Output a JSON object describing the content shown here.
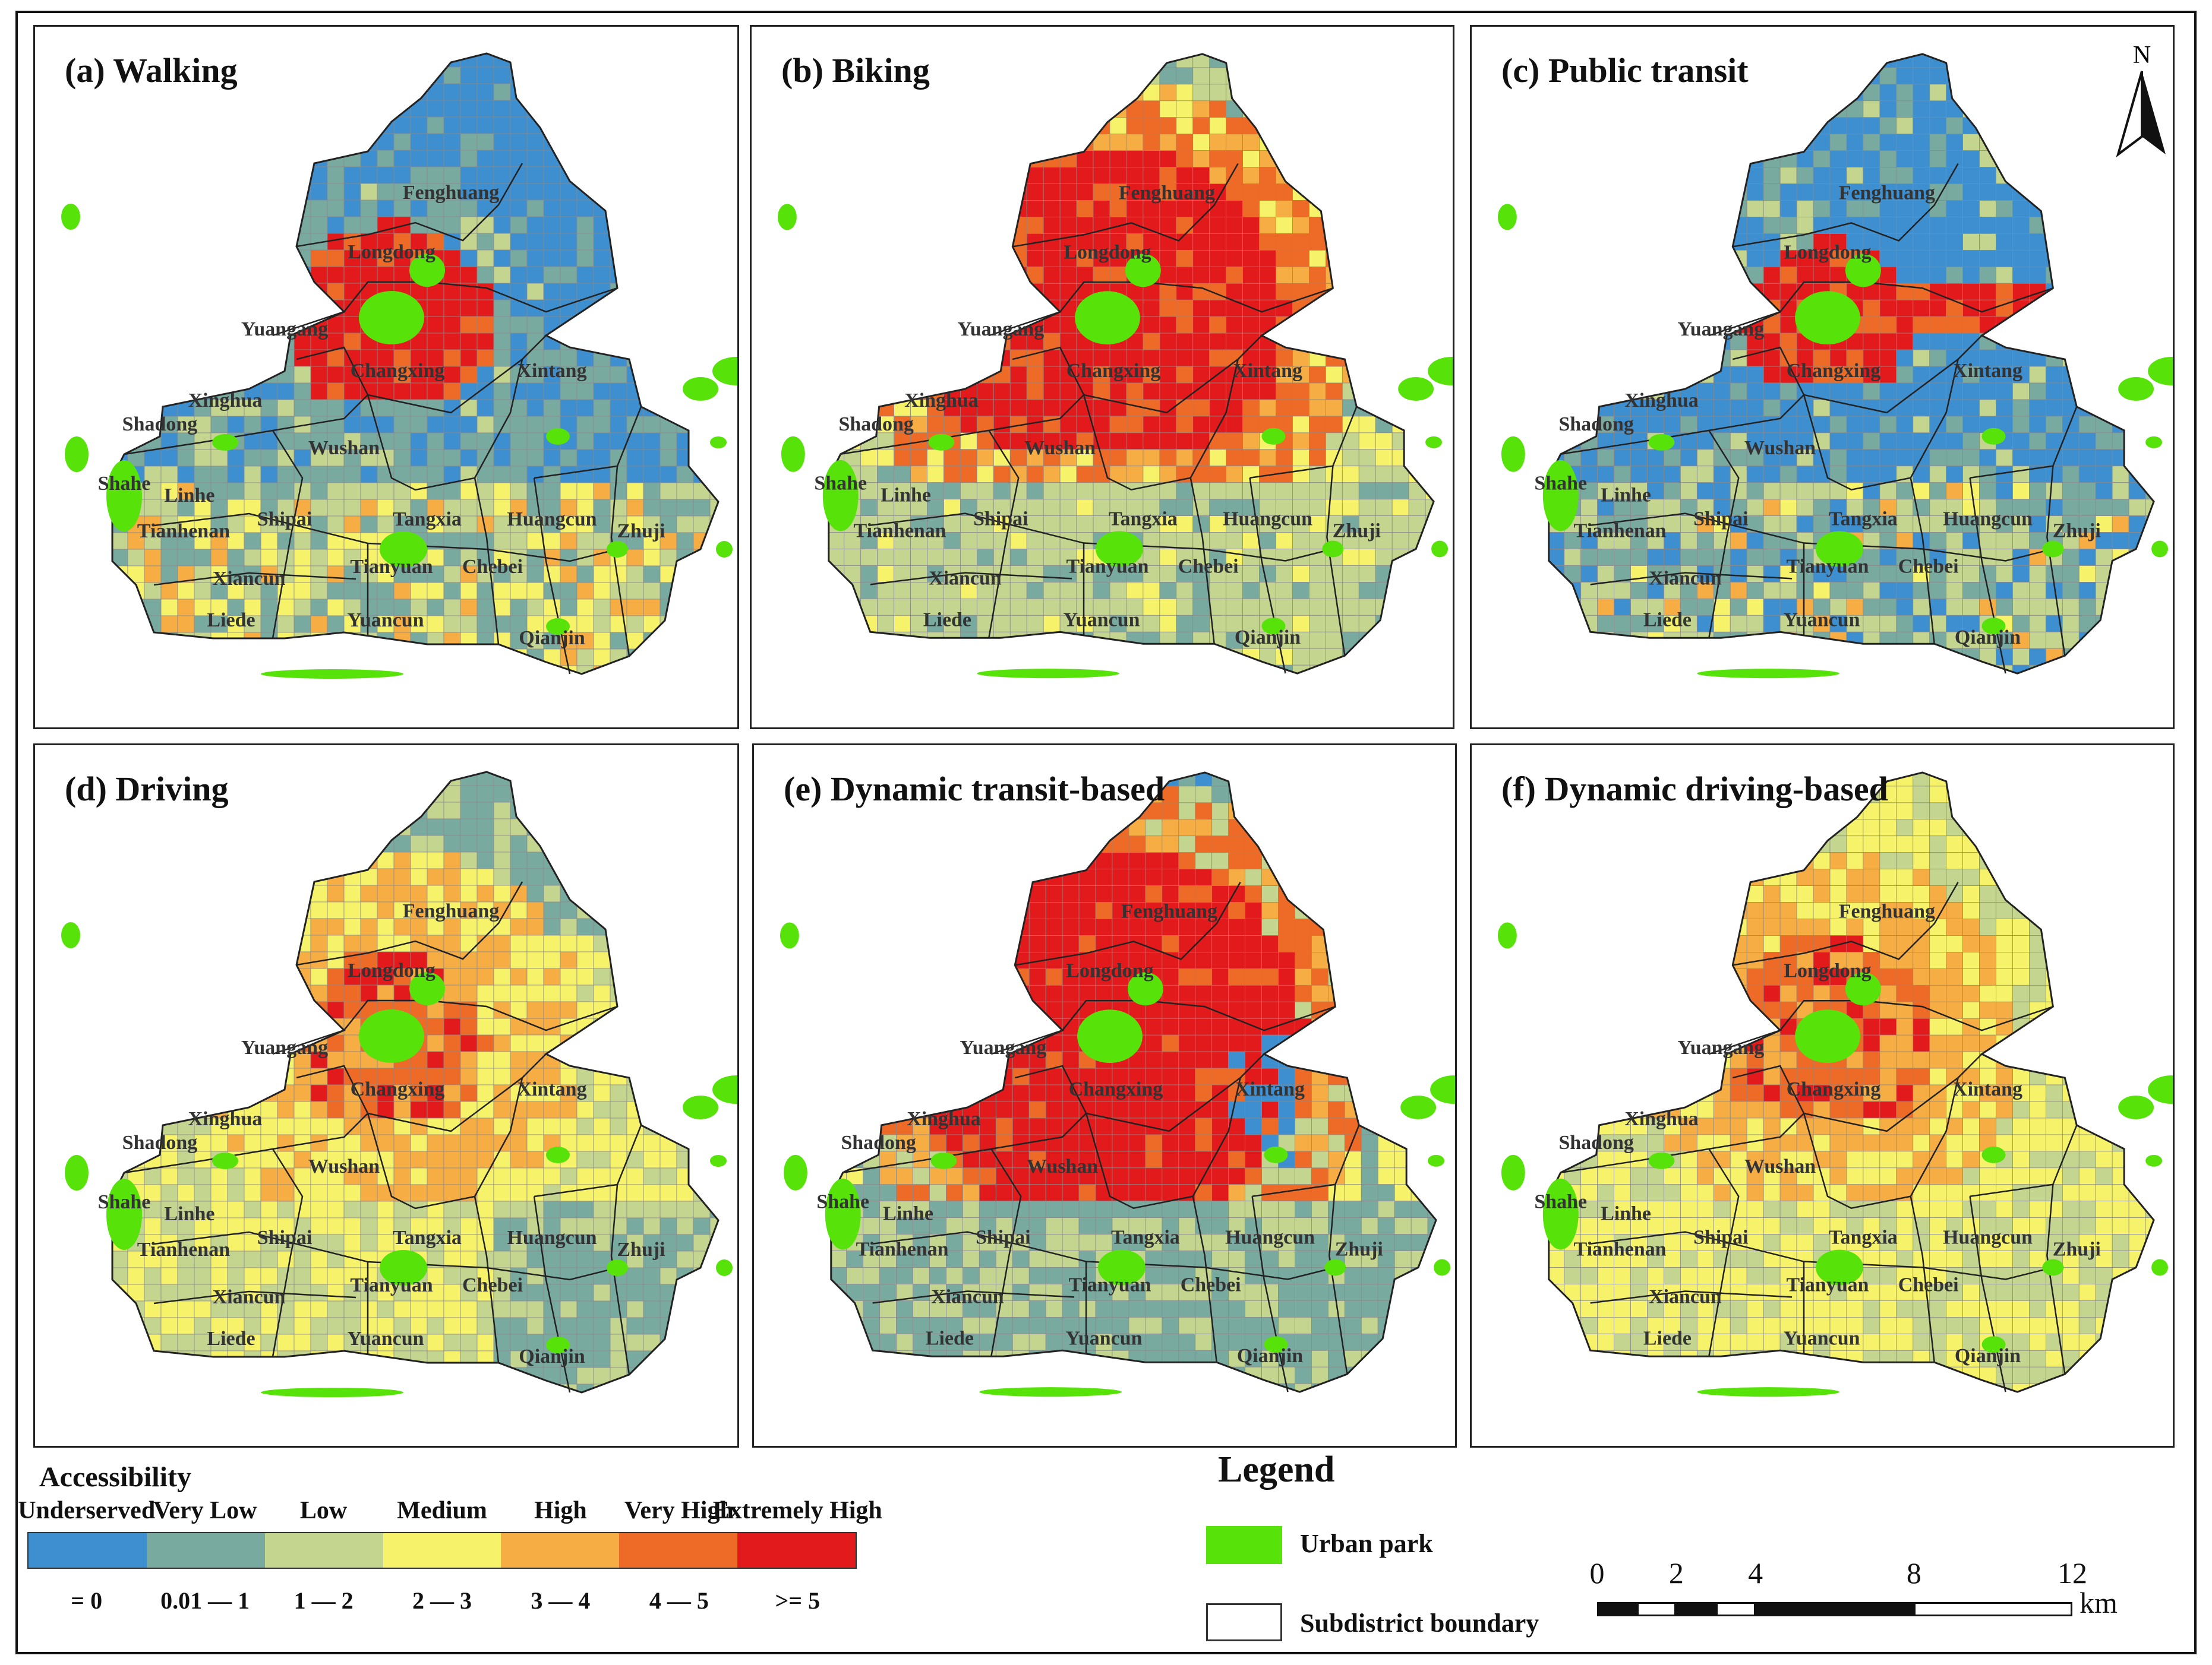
{
  "panels": [
    {
      "id": "a",
      "title": "(a) Walking",
      "mode": "walking"
    },
    {
      "id": "b",
      "title": "(b) Biking",
      "mode": "biking"
    },
    {
      "id": "c",
      "title": "(c) Public transit",
      "mode": "transit"
    },
    {
      "id": "d",
      "title": "(d) Driving",
      "mode": "driving"
    },
    {
      "id": "e",
      "title": "(e) Dynamic transit-based",
      "mode": "dyn_transit"
    },
    {
      "id": "f",
      "title": "(f) Dynamic driving-based",
      "mode": "dyn_driving"
    }
  ],
  "subdistricts": [
    "Fenghuang",
    "Longdong",
    "Yuangang",
    "Changxing",
    "Xintang",
    "Xinghua",
    "Shadong",
    "Wushan",
    "Shahe",
    "Linhe",
    "Tianhenan",
    "Shipai",
    "Tangxia",
    "Huangcun",
    "Zhuji",
    "Xiancun",
    "Tianyuan",
    "Chebei",
    "Liede",
    "Yuancun",
    "Qianjin"
  ],
  "accessibility_legend": {
    "title": "Accessibility",
    "classes": [
      {
        "label": "Underserved",
        "range": "= 0",
        "color": "#3d8fd0"
      },
      {
        "label": "Very Low",
        "range": "0.01 — 1",
        "color": "#79aaa0"
      },
      {
        "label": "Low",
        "range": "1 — 2",
        "color": "#c3d58f"
      },
      {
        "label": "Medium",
        "range": "2 — 3",
        "color": "#f6f36a"
      },
      {
        "label": "High",
        "range": "3 — 4",
        "color": "#f6ad44"
      },
      {
        "label": "Very High",
        "range": "4 — 5",
        "color": "#ee6a27"
      },
      {
        "label": "Extremely High",
        "range": ">= 5",
        "color": "#e31a1c"
      }
    ]
  },
  "legend": {
    "title": "Legend",
    "urban_park": "Urban park",
    "urban_park_color": "#57e30a",
    "subdistrict_boundary": "Subdistrict boundary"
  },
  "scale_bar": {
    "ticks": [
      "0",
      "2",
      "4",
      "8",
      "12"
    ],
    "unit": "km"
  },
  "north_arrow": {
    "label": "N"
  }
}
